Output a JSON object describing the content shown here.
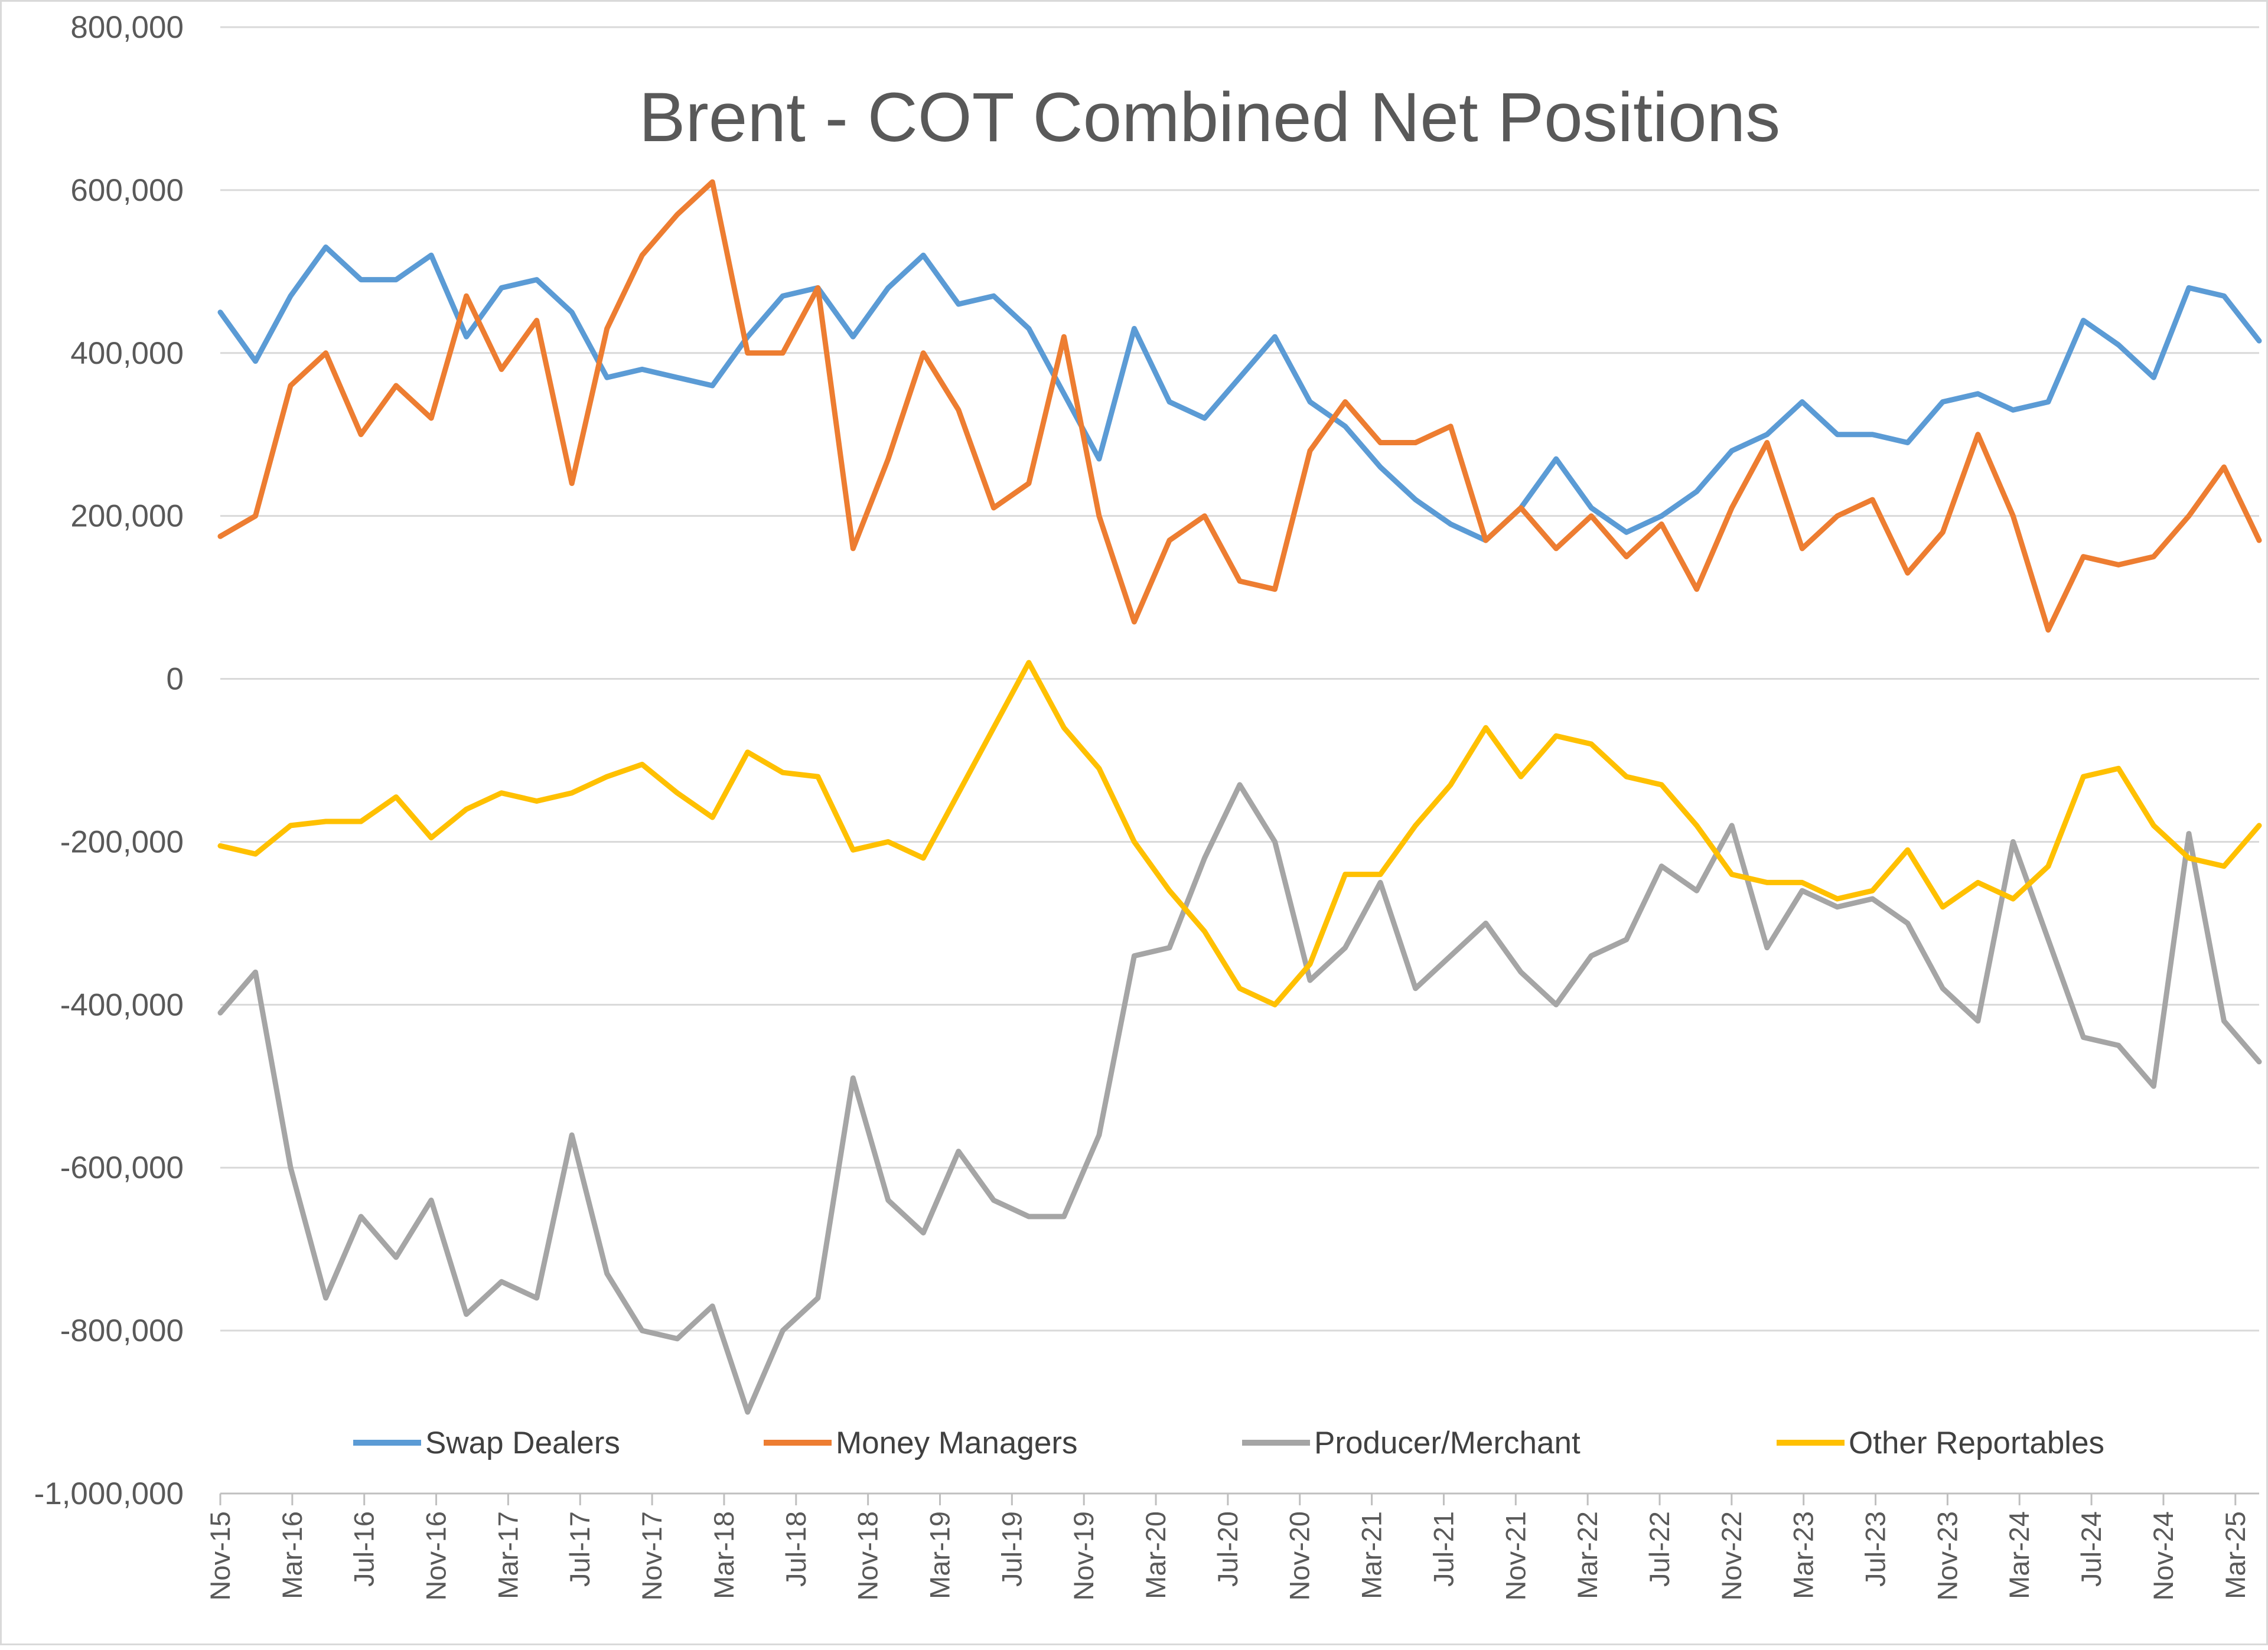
{
  "chart_data": {
    "type": "line",
    "title": "Brent - COT Combined Net Positions",
    "xlabel": "",
    "ylabel": "",
    "ylim": [
      -1000000,
      800000
    ],
    "y_ticks": [
      800000,
      600000,
      400000,
      200000,
      0,
      -200000,
      -400000,
      -600000,
      -800000,
      -1000000
    ],
    "y_tick_labels": [
      "800,000",
      "600,000",
      "400,000",
      "200,000",
      "0",
      "-200,000",
      "-400,000",
      "-600,000",
      "-800,000",
      "-1,000,000"
    ],
    "x_tick_labels": [
      "Nov-15",
      "Mar-16",
      "Jul-16",
      "Nov-16",
      "Mar-17",
      "Jul-17",
      "Nov-17",
      "Mar-18",
      "Jul-18",
      "Nov-18",
      "Mar-19",
      "Jul-19",
      "Nov-19",
      "Mar-20",
      "Jul-20",
      "Nov-20",
      "Mar-21",
      "Jul-21",
      "Nov-21",
      "Mar-22",
      "Jul-22",
      "Nov-22",
      "Mar-23",
      "Jul-23",
      "Nov-23",
      "Mar-24",
      "Jul-24",
      "Nov-24",
      "Mar-25"
    ],
    "grid": "horizontal",
    "legend_position": "bottom",
    "x": [
      "Nov-15",
      "Jan-16",
      "Mar-16",
      "May-16",
      "Jul-16",
      "Sep-16",
      "Nov-16",
      "Jan-17",
      "Mar-17",
      "May-17",
      "Jul-17",
      "Sep-17",
      "Nov-17",
      "Jan-18",
      "Mar-18",
      "May-18",
      "Jul-18",
      "Sep-18",
      "Nov-18",
      "Jan-19",
      "Mar-19",
      "May-19",
      "Jul-19",
      "Sep-19",
      "Nov-19",
      "Jan-20",
      "Mar-20",
      "May-20",
      "Jul-20",
      "Sep-20",
      "Nov-20",
      "Jan-21",
      "Mar-21",
      "May-21",
      "Jul-21",
      "Sep-21",
      "Nov-21",
      "Jan-22",
      "Mar-22",
      "May-22",
      "Jul-22",
      "Sep-22",
      "Nov-22",
      "Jan-23",
      "Mar-23",
      "May-23",
      "Jul-23",
      "Sep-23",
      "Nov-23",
      "Jan-24",
      "Mar-24",
      "May-24",
      "Jul-24",
      "Sep-24",
      "Nov-24",
      "Jan-25",
      "Mar-25",
      "May-25",
      "Jun-25"
    ],
    "series": [
      {
        "name": "Swap Dealers",
        "color": "#5b9bd5",
        "values": [
          450000,
          390000,
          470000,
          530000,
          490000,
          490000,
          520000,
          420000,
          480000,
          490000,
          450000,
          370000,
          380000,
          370000,
          360000,
          420000,
          470000,
          480000,
          420000,
          480000,
          520000,
          460000,
          470000,
          430000,
          350000,
          270000,
          430000,
          340000,
          320000,
          370000,
          420000,
          340000,
          310000,
          260000,
          220000,
          190000,
          170000,
          210000,
          270000,
          210000,
          180000,
          200000,
          230000,
          280000,
          300000,
          340000,
          300000,
          300000,
          290000,
          340000,
          350000,
          330000,
          340000,
          440000,
          410000,
          370000,
          480000,
          470000,
          415000
        ]
      },
      {
        "name": "Money Managers",
        "color": "#ed7d31",
        "values": [
          175000,
          200000,
          360000,
          400000,
          300000,
          360000,
          320000,
          470000,
          380000,
          440000,
          240000,
          430000,
          520000,
          570000,
          610000,
          400000,
          400000,
          480000,
          160000,
          270000,
          400000,
          330000,
          210000,
          240000,
          420000,
          200000,
          70000,
          170000,
          200000,
          120000,
          110000,
          280000,
          340000,
          290000,
          290000,
          310000,
          170000,
          210000,
          160000,
          200000,
          150000,
          190000,
          110000,
          210000,
          290000,
          160000,
          200000,
          220000,
          130000,
          180000,
          300000,
          200000,
          60000,
          150000,
          140000,
          150000,
          200000,
          260000,
          170000
        ]
      },
      {
        "name": "Producer/Merchant",
        "color": "#a5a5a5",
        "values": [
          -410000,
          -360000,
          -600000,
          -760000,
          -660000,
          -710000,
          -640000,
          -780000,
          -740000,
          -760000,
          -560000,
          -730000,
          -800000,
          -810000,
          -770000,
          -900000,
          -800000,
          -760000,
          -490000,
          -640000,
          -680000,
          -580000,
          -640000,
          -660000,
          -660000,
          -560000,
          -340000,
          -330000,
          -220000,
          -130000,
          -200000,
          -370000,
          -330000,
          -250000,
          -380000,
          -340000,
          -300000,
          -360000,
          -400000,
          -340000,
          -320000,
          -230000,
          -260000,
          -180000,
          -330000,
          -260000,
          -280000,
          -270000,
          -300000,
          -380000,
          -420000,
          -200000,
          -320000,
          -440000,
          -450000,
          -500000,
          -190000,
          -420000,
          -470000
        ]
      },
      {
        "name": "Other Reportables",
        "color": "#ffc000",
        "values": [
          -205000,
          -215000,
          -180000,
          -175000,
          -175000,
          -145000,
          -195000,
          -160000,
          -140000,
          -150000,
          -140000,
          -120000,
          -105000,
          -140000,
          -170000,
          -90000,
          -115000,
          -120000,
          -210000,
          -200000,
          -220000,
          -140000,
          -60000,
          20000,
          -60000,
          -110000,
          -200000,
          -260000,
          -310000,
          -380000,
          -400000,
          -350000,
          -240000,
          -240000,
          -180000,
          -130000,
          -60000,
          -120000,
          -70000,
          -80000,
          -120000,
          -130000,
          -180000,
          -240000,
          -250000,
          -250000,
          -270000,
          -260000,
          -210000,
          -280000,
          -250000,
          -270000,
          -230000,
          -120000,
          -110000,
          -180000,
          -220000,
          -230000,
          -180000
        ]
      }
    ]
  }
}
